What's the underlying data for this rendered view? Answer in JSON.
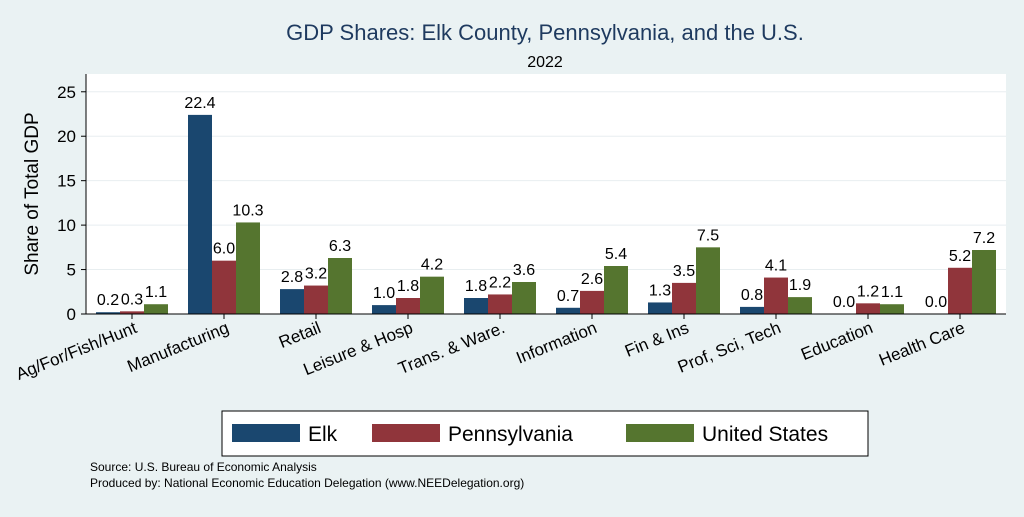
{
  "chart_data": {
    "type": "bar",
    "title": "GDP Shares: Elk County, Pennsylvania, and the U.S.",
    "subtitle": "2022",
    "ylabel": "Share of Total GDP",
    "xlabel": "",
    "ylim": [
      0,
      27
    ],
    "yticks": [
      0,
      5,
      10,
      15,
      20,
      25
    ],
    "grid": true,
    "legend_position": "bottom",
    "categories": [
      "Ag/For/Fish/Hunt",
      "Manufacturing",
      "Retail",
      "Leisure & Hosp",
      "Trans. & Ware.",
      "Information",
      "Fin & Ins",
      "Prof, Sci, Tech",
      "Education",
      "Health Care"
    ],
    "series": [
      {
        "name": "Elk",
        "color": "#1a476f",
        "values": [
          0.2,
          22.4,
          2.8,
          1.0,
          1.8,
          0.7,
          1.3,
          0.8,
          0.0,
          0.0
        ]
      },
      {
        "name": "Pennsylvania",
        "color": "#90353b",
        "values": [
          0.3,
          6.0,
          3.2,
          1.8,
          2.2,
          2.6,
          3.5,
          4.1,
          1.2,
          5.2
        ]
      },
      {
        "name": "United States",
        "color": "#55752f",
        "values": [
          1.1,
          10.3,
          6.3,
          4.2,
          3.6,
          5.4,
          7.5,
          1.9,
          1.1,
          7.2
        ]
      }
    ]
  },
  "footer": {
    "source": "Source: U.S. Bureau of Economic Analysis",
    "produced": "Produced by: National Economic Education Delegation (www.NEEDelegation.org)"
  }
}
